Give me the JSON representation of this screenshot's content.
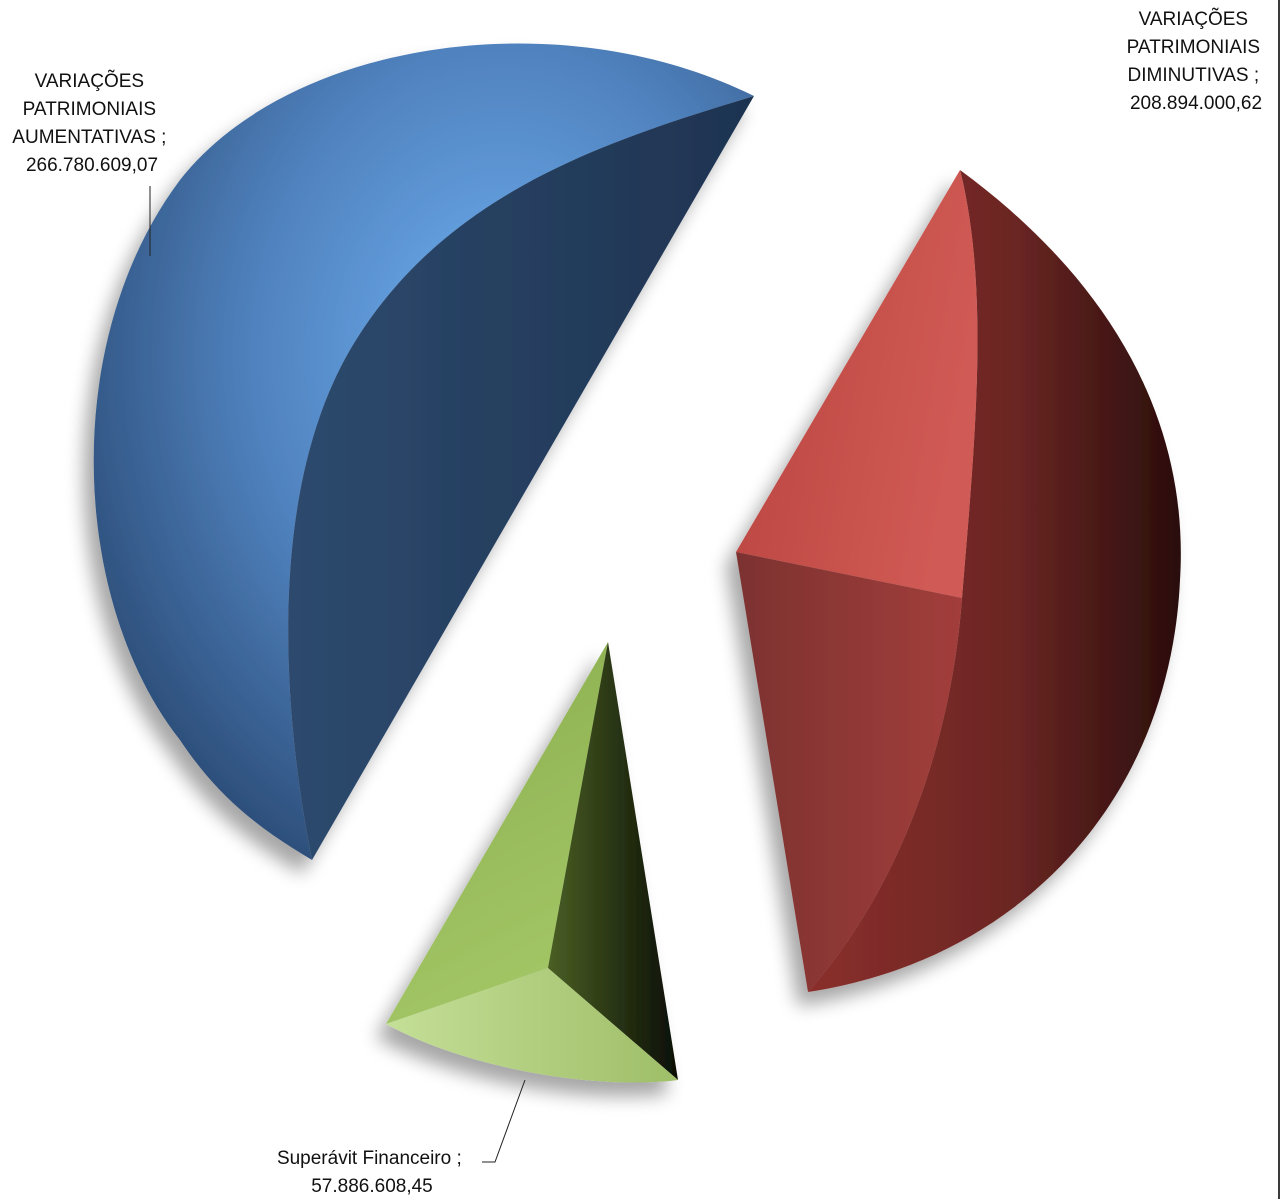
{
  "chart_data": {
    "type": "pie",
    "title": "",
    "exploded": true,
    "three_d": true,
    "legend": "none",
    "slices": [
      {
        "name": "VARIAÇÕES PATRIMONIAIS AUMENTATIVAS",
        "value": 266780609.07,
        "label_lines": [
          "VARIAÇÕES",
          "PATRIMONIAIS",
          "AUMENTATIVAS ;",
          "266.780.609,07"
        ],
        "color": "#4f81bd"
      },
      {
        "name": "VARIAÇÕES PATRIMONIAIS DIMINUTIVAS",
        "value": 208894000.62,
        "label_lines": [
          "VARIAÇÕES",
          "PATRIMONIAIS",
          "DIMINUTIVAS ;",
          "208.894.000,62"
        ],
        "color": "#c0504d"
      },
      {
        "name": "Superávit Financeiro",
        "value": 57886608.45,
        "label_lines": [
          "Superávit Financeiro ;",
          "57.886.608,45"
        ],
        "color": "#9bbb59"
      }
    ]
  }
}
